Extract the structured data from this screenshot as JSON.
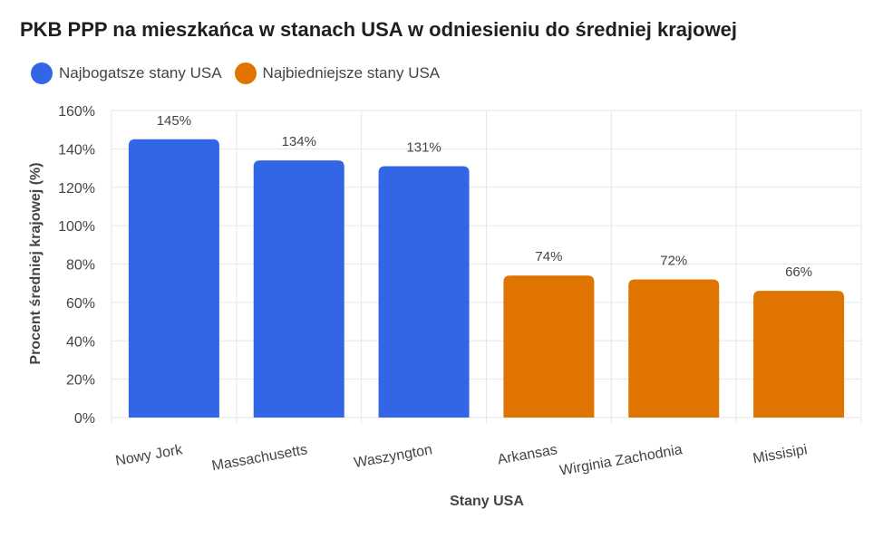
{
  "chart_data": {
    "type": "bar",
    "title": "PKB PPP na mieszkańca w stanach USA w odniesieniu do średniej krajowej",
    "xlabel": "Stany USA",
    "ylabel": "Procent średniej krajowej (%)",
    "ylim": [
      0,
      160
    ],
    "yticks": [
      "0%",
      "20%",
      "40%",
      "60%",
      "80%",
      "100%",
      "120%",
      "140%",
      "160%"
    ],
    "grid": true,
    "legend_position": "top-left",
    "legend": [
      {
        "label": "Najbogatsze stany USA",
        "color": "#3366e6"
      },
      {
        "label": "Najbiedniejsze stany USA",
        "color": "#e07400"
      }
    ],
    "categories": [
      "Nowy Jork",
      "Massachusetts",
      "Waszyngton",
      "Arkansas",
      "Wirginia Zachodnia",
      "Missisipi"
    ],
    "values": [
      145,
      134,
      131,
      74,
      72,
      66
    ],
    "value_labels": [
      "145%",
      "134%",
      "131%",
      "74%",
      "72%",
      "66%"
    ],
    "bar_group": [
      0,
      0,
      0,
      1,
      1,
      1
    ]
  }
}
